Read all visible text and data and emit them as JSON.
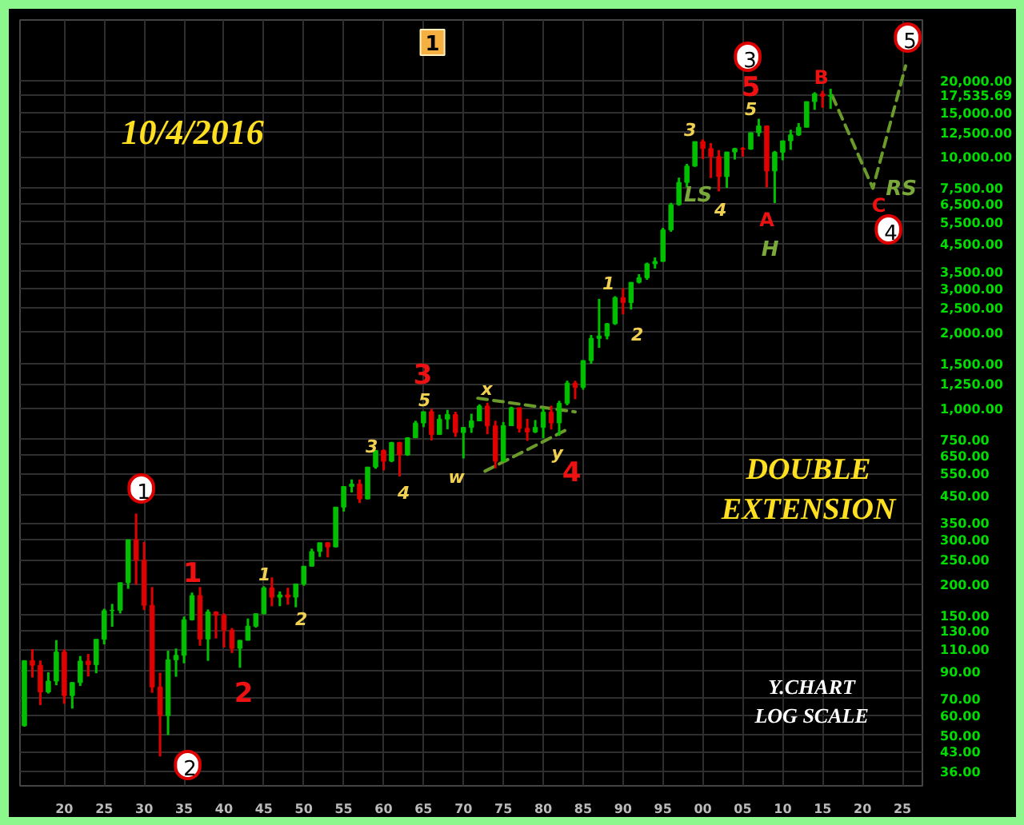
{
  "chart_data": {
    "type": "candlestick",
    "title": "10/4/2016",
    "x": [
      1915,
      1916,
      1917,
      1918,
      1919,
      1920,
      1921,
      1922,
      1923,
      1924,
      1925,
      1926,
      1927,
      1928,
      1929,
      1930,
      1931,
      1932,
      1933,
      1934,
      1935,
      1936,
      1937,
      1938,
      1939,
      1940,
      1941,
      1942,
      1943,
      1944,
      1945,
      1946,
      1947,
      1948,
      1949,
      1950,
      1951,
      1952,
      1953,
      1954,
      1955,
      1956,
      1957,
      1958,
      1959,
      1960,
      1961,
      1962,
      1963,
      1964,
      1965,
      1966,
      1967,
      1968,
      1969,
      1970,
      1971,
      1972,
      1973,
      1974,
      1975,
      1976,
      1977,
      1978,
      1979,
      1980,
      1981,
      1982,
      1983,
      1984,
      1985,
      1986,
      1987,
      1988,
      1989,
      1990,
      1991,
      1992,
      1993,
      1994,
      1995,
      1996,
      1997,
      1998,
      1999,
      2000,
      2001,
      2002,
      2003,
      2004,
      2005,
      2006,
      2007,
      2008,
      2009,
      2010,
      2011,
      2012,
      2013,
      2014,
      2015,
      2016
    ],
    "ohlc": [
      [
        54.58,
        99.2,
        54.2,
        99.15
      ],
      [
        99.15,
        110.2,
        84.96,
        95.0
      ],
      [
        95.0,
        99.18,
        65.95,
        74.38
      ],
      [
        74.38,
        89.07,
        73.38,
        82.2
      ],
      [
        82.2,
        119.62,
        79.15,
        107.23
      ],
      [
        107.23,
        109.88,
        66.75,
        71.95
      ],
      [
        71.95,
        81.5,
        63.9,
        81.1
      ],
      [
        81.1,
        103.43,
        78.59,
        98.73
      ],
      [
        98.73,
        105.38,
        85.76,
        95.52
      ],
      [
        95.52,
        120.51,
        88.33,
        120.51
      ],
      [
        120.51,
        159.39,
        115.0,
        156.66
      ],
      [
        156.66,
        166.64,
        135.2,
        157.2
      ],
      [
        157.2,
        202.4,
        152.73,
        202.4
      ],
      [
        202.4,
        300.0,
        191.33,
        300.0
      ],
      [
        300.0,
        381.17,
        198.69,
        248.48
      ],
      [
        248.48,
        294.07,
        157.51,
        164.58
      ],
      [
        164.58,
        194.36,
        73.79,
        77.9
      ],
      [
        77.9,
        88.78,
        41.22,
        59.93
      ],
      [
        59.93,
        108.67,
        50.16,
        99.9
      ],
      [
        99.9,
        110.74,
        85.51,
        104.04
      ],
      [
        104.04,
        148.44,
        96.71,
        144.13
      ],
      [
        144.13,
        184.9,
        143.11,
        179.9
      ],
      [
        179.9,
        194.4,
        113.64,
        120.85
      ],
      [
        120.85,
        158.41,
        98.95,
        154.76
      ],
      [
        154.76,
        155.92,
        121.44,
        150.24
      ],
      [
        150.24,
        152.8,
        111.84,
        131.13
      ],
      [
        131.13,
        133.59,
        106.34,
        110.96
      ],
      [
        110.96,
        119.71,
        92.92,
        119.4
      ],
      [
        119.4,
        145.82,
        119.26,
        135.89
      ],
      [
        135.89,
        152.53,
        134.22,
        152.32
      ],
      [
        152.32,
        195.82,
        151.35,
        192.91
      ],
      [
        192.91,
        212.5,
        163.12,
        177.2
      ],
      [
        177.2,
        186.85,
        163.21,
        181.16
      ],
      [
        181.16,
        193.16,
        165.39,
        177.3
      ],
      [
        177.3,
        200.52,
        161.6,
        200.13
      ],
      [
        200.13,
        235.47,
        196.81,
        235.41
      ],
      [
        235.41,
        276.37,
        235.0,
        269.23
      ],
      [
        269.23,
        292.0,
        256.35,
        291.9
      ],
      [
        291.9,
        293.79,
        255.49,
        280.9
      ],
      [
        280.9,
        404.39,
        279.87,
        404.39
      ],
      [
        404.39,
        488.4,
        388.2,
        488.4
      ],
      [
        488.4,
        521.05,
        462.35,
        499.47
      ],
      [
        499.47,
        520.77,
        419.79,
        435.69
      ],
      [
        435.69,
        583.65,
        435.0,
        583.65
      ],
      [
        583.65,
        679.36,
        574.46,
        679.36
      ],
      [
        679.36,
        685.47,
        566.05,
        615.89
      ],
      [
        615.89,
        734.91,
        610.25,
        731.14
      ],
      [
        731.14,
        735.0,
        535.76,
        652.1
      ],
      [
        652.1,
        767.21,
        646.79,
        762.95
      ],
      [
        762.95,
        891.71,
        762.0,
        874.13
      ],
      [
        874.13,
        969.26,
        840.59,
        969.26
      ],
      [
        969.26,
        995.15,
        744.32,
        785.69
      ],
      [
        785.69,
        943.08,
        785.0,
        905.11
      ],
      [
        905.11,
        985.21,
        825.13,
        943.75
      ],
      [
        943.75,
        968.85,
        769.93,
        800.36
      ],
      [
        800.36,
        842.0,
        631.16,
        838.92
      ],
      [
        838.92,
        950.82,
        797.97,
        890.2
      ],
      [
        890.2,
        1036.27,
        889.15,
        1020.02
      ],
      [
        1020.02,
        1051.7,
        788.31,
        850.86
      ],
      [
        850.86,
        891.66,
        577.6,
        616.24
      ],
      [
        616.24,
        881.81,
        616.0,
        852.41
      ],
      [
        852.41,
        1014.79,
        852.0,
        1004.65
      ],
      [
        1004.65,
        1005.0,
        800.85,
        831.17
      ],
      [
        831.17,
        907.74,
        742.12,
        805.01
      ],
      [
        805.01,
        897.61,
        796.67,
        838.74
      ],
      [
        838.74,
        1000.17,
        759.13,
        963.99
      ],
      [
        963.99,
        1024.05,
        824.01,
        875.0
      ],
      [
        875.0,
        1070.55,
        776.92,
        1046.54
      ],
      [
        1046.54,
        1287.2,
        1027.04,
        1258.64
      ],
      [
        1258.64,
        1286.64,
        1086.57,
        1211.57
      ],
      [
        1211.57,
        1553.1,
        1184.96,
        1546.67
      ],
      [
        1546.67,
        1955.57,
        1502.29,
        1895.95
      ],
      [
        1895.95,
        2722.42,
        1738.74,
        1938.83
      ],
      [
        1938.83,
        2183.5,
        1879.14,
        2168.57
      ],
      [
        2168.57,
        2791.41,
        2144.64,
        2753.2
      ],
      [
        2753.2,
        2999.75,
        2365.1,
        2633.66
      ],
      [
        2633.66,
        3168.83,
        2470.3,
        3168.83
      ],
      [
        3168.83,
        3413.21,
        3136.58,
        3301.11
      ],
      [
        3301.11,
        3794.33,
        3241.95,
        3754.09
      ],
      [
        3754.09,
        3978.36,
        3593.35,
        3834.44
      ],
      [
        3834.44,
        5216.47,
        3832.08,
        5117.12
      ],
      [
        5117.12,
        6560.91,
        5032.94,
        6448.27
      ],
      [
        6448.27,
        8259.31,
        6391.69,
        7908.25
      ],
      [
        7908.25,
        9374.27,
        7539.07,
        9181.43
      ],
      [
        9181.43,
        11497.12,
        9120.67,
        11497.12
      ],
      [
        11497.12,
        11722.98,
        9796.03,
        10786.85
      ],
      [
        10786.85,
        11337.92,
        8235.81,
        10021.5
      ],
      [
        10021.5,
        10635.25,
        7286.27,
        8341.63
      ],
      [
        8341.63,
        10453.92,
        7524.06,
        10453.92
      ],
      [
        10453.92,
        10854.54,
        9749.99,
        10783.01
      ],
      [
        10783.01,
        10940.55,
        10012.36,
        10717.5
      ],
      [
        10717.5,
        12510.57,
        10667.39,
        12463.15
      ],
      [
        12463.15,
        14164.53,
        12050.41,
        13264.82
      ],
      [
        13264.82,
        13280.0,
        7552.29,
        8776.39
      ],
      [
        8776.39,
        10548.51,
        6547.05,
        10428.05
      ],
      [
        10428.05,
        11585.38,
        9686.48,
        11577.51
      ],
      [
        11577.51,
        12810.54,
        10655.3,
        12217.56
      ],
      [
        12217.56,
        13610.15,
        12101.46,
        13104.14
      ],
      [
        13104.14,
        16576.66,
        13100.0,
        16576.66
      ],
      [
        16576.66,
        18053.71,
        15372.8,
        17823.07
      ],
      [
        17823.07,
        18312.39,
        15666.44,
        17425.03
      ],
      [
        17425.03,
        18636.0,
        15503.0,
        17535.69
      ]
    ],
    "colors": [
      "#00c000",
      "#e00000",
      "#e00000",
      "#00c000",
      "#00c000",
      "#e00000",
      "#00c000",
      "#00c000",
      "#e00000",
      "#00c000",
      "#00c000",
      "#00c000",
      "#00c000",
      "#00c000",
      "#e00000",
      "#e00000",
      "#e00000",
      "#e00000",
      "#00c000",
      "#00c000",
      "#00c000",
      "#00c000",
      "#e00000",
      "#00c000",
      "#e00000",
      "#e00000",
      "#e00000",
      "#00c000",
      "#00c000",
      "#00c000",
      "#00c000",
      "#e00000",
      "#00c000",
      "#e00000",
      "#00c000",
      "#00c000",
      "#00c000",
      "#00c000",
      "#e00000",
      "#00c000",
      "#00c000",
      "#00c000",
      "#e00000",
      "#00c000",
      "#00c000",
      "#e00000",
      "#00c000",
      "#e00000",
      "#00c000",
      "#00c000",
      "#00c000",
      "#e00000",
      "#00c000",
      "#00c000",
      "#e00000",
      "#00c000",
      "#00c000",
      "#00c000",
      "#e00000",
      "#e00000",
      "#00c000",
      "#00c000",
      "#e00000",
      "#e00000",
      "#00c000",
      "#00c000",
      "#e00000",
      "#00c000",
      "#00c000",
      "#e00000",
      "#00c000",
      "#00c000",
      "#00c000",
      "#00c000",
      "#00c000",
      "#e00000",
      "#00c000",
      "#00c000",
      "#00c000",
      "#00c000",
      "#00c000",
      "#00c000",
      "#00c000",
      "#00c000",
      "#00c000",
      "#e00000",
      "#e00000",
      "#e00000",
      "#00c000",
      "#00c000",
      "#e00000",
      "#00c000",
      "#00c000",
      "#e00000",
      "#00c000",
      "#00c000",
      "#00c000",
      "#00c000",
      "#00c000",
      "#00c000",
      "#e00000",
      "#00c000"
    ],
    "series": [
      {
        "type": "line",
        "color": "#6a9a2a",
        "line_style": "dashed",
        "x": [
          2016.2,
          2021.3,
          2025.4
        ],
        "values": [
          17500,
          7500,
          23000
        ]
      },
      {
        "type": "line",
        "color": "#6a9a2a",
        "line_style": "dashed",
        "x": [
          1971.8,
          1984.0
        ],
        "values": [
          1096,
          967
        ]
      },
      {
        "type": "line",
        "color": "#6a9a2a",
        "line_style": "dashed",
        "x": [
          1972.7,
          1983.4
        ],
        "values": [
          562,
          836
        ]
      }
    ],
    "xlim": [
      1914.45,
      2027.5
    ],
    "xticks": [
      {
        "value": 1920,
        "label": "20"
      },
      {
        "value": 1925,
        "label": "25"
      },
      {
        "value": 1930,
        "label": "30"
      },
      {
        "value": 1935,
        "label": "35"
      },
      {
        "value": 1940,
        "label": "40"
      },
      {
        "value": 1945,
        "label": "45"
      },
      {
        "value": 1950,
        "label": "50"
      },
      {
        "value": 1955,
        "label": "55"
      },
      {
        "value": 1960,
        "label": "60"
      },
      {
        "value": 1965,
        "label": "65"
      },
      {
        "value": 1970,
        "label": "70"
      },
      {
        "value": 1975,
        "label": "75"
      },
      {
        "value": 1980,
        "label": "80"
      },
      {
        "value": 1985,
        "label": "85"
      },
      {
        "value": 1990,
        "label": "90"
      },
      {
        "value": 1995,
        "label": "95"
      },
      {
        "value": 2000,
        "label": "00"
      },
      {
        "value": 2005,
        "label": "05"
      },
      {
        "value": 2010,
        "label": "10"
      },
      {
        "value": 2015,
        "label": "15"
      },
      {
        "value": 2020,
        "label": "20"
      },
      {
        "value": 2025,
        "label": "25"
      }
    ],
    "ylim": [
      31.5,
      35000
    ],
    "log": true,
    "yticks": [
      {
        "value": 36,
        "label": "36.00"
      },
      {
        "value": 43,
        "label": "43.00"
      },
      {
        "value": 50,
        "label": "50.00"
      },
      {
        "value": 60,
        "label": "60.00"
      },
      {
        "value": 70,
        "label": "70.00"
      },
      {
        "value": 90,
        "label": "90.00"
      },
      {
        "value": 110,
        "label": "110.00"
      },
      {
        "value": 130,
        "label": "130.00"
      },
      {
        "value": 150,
        "label": "150.00"
      },
      {
        "value": 200,
        "label": "200.00"
      },
      {
        "value": 250,
        "label": "250.00"
      },
      {
        "value": 300,
        "label": "300.00"
      },
      {
        "value": 350,
        "label": "350.00"
      },
      {
        "value": 450,
        "label": "450.00"
      },
      {
        "value": 550,
        "label": "550.00"
      },
      {
        "value": 650,
        "label": "650.00"
      },
      {
        "value": 750,
        "label": "750.00"
      },
      {
        "value": 1000,
        "label": "1,000.00"
      },
      {
        "value": 1250,
        "label": "1,250.00"
      },
      {
        "value": 1500,
        "label": "1,500.00"
      },
      {
        "value": 2000,
        "label": "2,000.00"
      },
      {
        "value": 2500,
        "label": "2,500.00"
      },
      {
        "value": 3000,
        "label": "3,000.00"
      },
      {
        "value": 3500,
        "label": "3,500.00"
      },
      {
        "value": 4500,
        "label": "4,500.00"
      },
      {
        "value": 5500,
        "label": "5,500.00"
      },
      {
        "value": 6500,
        "label": "6,500.00"
      },
      {
        "value": 7500,
        "label": "7,500.00"
      },
      {
        "value": 10000,
        "label": "10,000.00"
      },
      {
        "value": 12500,
        "label": "12,500.00"
      },
      {
        "value": 15000,
        "label": "15,000.00"
      },
      {
        "value": 17535.69,
        "label": "17,535.69"
      },
      {
        "value": 20000,
        "label": "20,000.00"
      }
    ],
    "grid": true,
    "annotations": [
      "1",
      "2",
      "3",
      "4",
      "5",
      "1",
      "2",
      "3",
      "4",
      "5",
      "1",
      "2",
      "3",
      "4",
      "5",
      "1",
      "2",
      "3",
      "4",
      "5",
      "w",
      "x",
      "y",
      "A",
      "B",
      "C",
      "LS",
      "H",
      "RS",
      "1",
      "DOUBLE\nEXTENSION",
      "Y.CHART\nLOG SCALE"
    ]
  }
}
